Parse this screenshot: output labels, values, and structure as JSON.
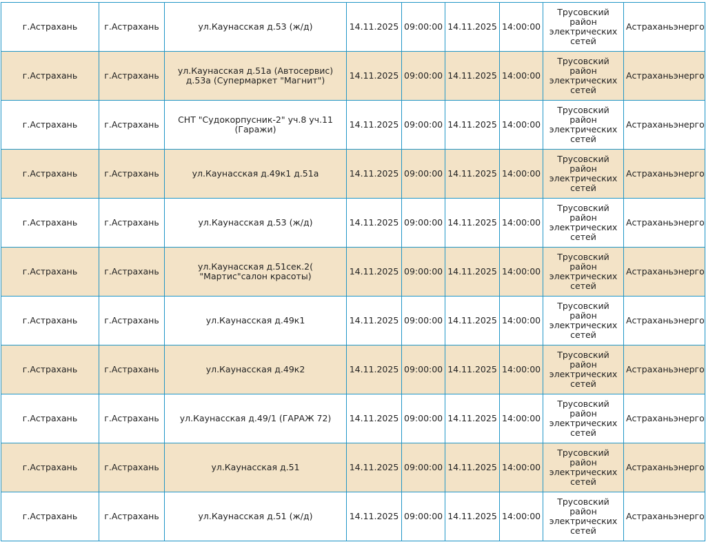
{
  "columns": [
    "locality",
    "district",
    "address",
    "start_date",
    "start_time",
    "end_date",
    "end_time",
    "network_unit",
    "organization"
  ],
  "rows": [
    {
      "locality": "г.Астрахань",
      "district": "г.Астрахань",
      "address": "ул.Каунасская д.53 (ж/д)",
      "start_date": "14.11.2025",
      "start_time": "09:00:00",
      "end_date": "14.11.2025",
      "end_time": "14:00:00",
      "network_unit": "Трусовский район электрических сетей",
      "organization": "Астраханьэнерго"
    },
    {
      "locality": "г.Астрахань",
      "district": "г.Астрахань",
      "address": "ул.Каунасская д.51а (Автосервис) д.53а (Супермаркет \"Магнит\")",
      "start_date": "14.11.2025",
      "start_time": "09:00:00",
      "end_date": "14.11.2025",
      "end_time": "14:00:00",
      "network_unit": "Трусовский район электрических сетей",
      "organization": "Астраханьэнерго"
    },
    {
      "locality": "г.Астрахань",
      "district": "г.Астрахань",
      "address": "СНТ \"Судокорпусник-2\" уч.8 уч.11 (Гаражи)",
      "start_date": "14.11.2025",
      "start_time": "09:00:00",
      "end_date": "14.11.2025",
      "end_time": "14:00:00",
      "network_unit": "Трусовский район электрических сетей",
      "organization": "Астраханьэнерго"
    },
    {
      "locality": "г.Астрахань",
      "district": "г.Астрахань",
      "address": "ул.Каунасская д.49к1 д.51а",
      "start_date": "14.11.2025",
      "start_time": "09:00:00",
      "end_date": "14.11.2025",
      "end_time": "14:00:00",
      "network_unit": "Трусовский район электрических сетей",
      "organization": "Астраханьэнерго"
    },
    {
      "locality": "г.Астрахань",
      "district": "г.Астрахань",
      "address": "ул.Каунасская д.53 (ж/д)",
      "start_date": "14.11.2025",
      "start_time": "09:00:00",
      "end_date": "14.11.2025",
      "end_time": "14:00:00",
      "network_unit": "Трусовский район электрических сетей",
      "organization": "Астраханьэнерго"
    },
    {
      "locality": "г.Астрахань",
      "district": "г.Астрахань",
      "address": "ул.Каунасская д.51сек.2( \"Мартис\"салон красоты)",
      "start_date": "14.11.2025",
      "start_time": "09:00:00",
      "end_date": "14.11.2025",
      "end_time": "14:00:00",
      "network_unit": "Трусовский район электрических сетей",
      "organization": "Астраханьэнерго"
    },
    {
      "locality": "г.Астрахань",
      "district": "г.Астрахань",
      "address": "ул.Каунасская д.49к1",
      "start_date": "14.11.2025",
      "start_time": "09:00:00",
      "end_date": "14.11.2025",
      "end_time": "14:00:00",
      "network_unit": "Трусовский район электрических сетей",
      "organization": "Астраханьэнерго"
    },
    {
      "locality": "г.Астрахань",
      "district": "г.Астрахань",
      "address": "ул.Каунасская д.49к2",
      "start_date": "14.11.2025",
      "start_time": "09:00:00",
      "end_date": "14.11.2025",
      "end_time": "14:00:00",
      "network_unit": "Трусовский район электрических сетей",
      "organization": "Астраханьэнерго"
    },
    {
      "locality": "г.Астрахань",
      "district": "г.Астрахань",
      "address": "ул.Каунасская д.49/1 (ГАРАЖ 72)",
      "start_date": "14.11.2025",
      "start_time": "09:00:00",
      "end_date": "14.11.2025",
      "end_time": "14:00:00",
      "network_unit": "Трусовский район электрических сетей",
      "organization": "Астраханьэнерго"
    },
    {
      "locality": "г.Астрахань",
      "district": "г.Астрахань",
      "address": "ул.Каунасская д.51",
      "start_date": "14.11.2025",
      "start_time": "09:00:00",
      "end_date": "14.11.2025",
      "end_time": "14:00:00",
      "network_unit": "Трусовский район электрических сетей",
      "organization": "Астраханьэнерго"
    },
    {
      "locality": "г.Астрахань",
      "district": "г.Астрахань",
      "address": "ул.Каунасская д.51 (ж/д)",
      "start_date": "14.11.2025",
      "start_time": "09:00:00",
      "end_date": "14.11.2025",
      "end_time": "14:00:00",
      "network_unit": "Трусовский район электрических сетей",
      "organization": "Астраханьэнерго"
    }
  ],
  "colors": {
    "border": "#1f95c6",
    "row_shaded": "#f3e3c7",
    "row_plain": "#ffffff",
    "text": "#222222"
  }
}
